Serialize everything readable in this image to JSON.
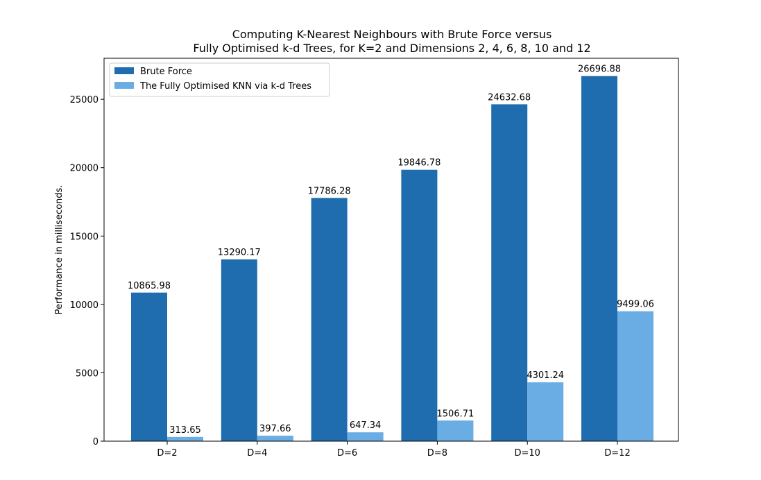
{
  "chart_data": {
    "type": "bar",
    "title": "Computing K-Nearest Neighbours with Brute Force versus\nFully Optimised k-d Trees, for K=2 and Dimensions 2, 4, 6, 8, 10 and 12",
    "xlabel": "",
    "ylabel": "Performance in milliseconds.",
    "categories": [
      "D=2",
      "D=4",
      "D=6",
      "D=8",
      "D=10",
      "D=12"
    ],
    "series": [
      {
        "name": "Brute Force",
        "color": "#1f6dae",
        "values": [
          10865.98,
          13290.17,
          17786.28,
          19846.78,
          24632.68,
          26696.88
        ]
      },
      {
        "name": "The Fully Optimised KNN via k-d Trees",
        "color": "#6aace4",
        "values": [
          313.65,
          397.66,
          647.34,
          1506.71,
          4301.24,
          9499.06
        ]
      }
    ],
    "ylim": [
      0,
      28000
    ],
    "yticks": [
      0,
      5000,
      10000,
      15000,
      20000,
      25000
    ],
    "legend_position": "top-left",
    "grid": false
  }
}
